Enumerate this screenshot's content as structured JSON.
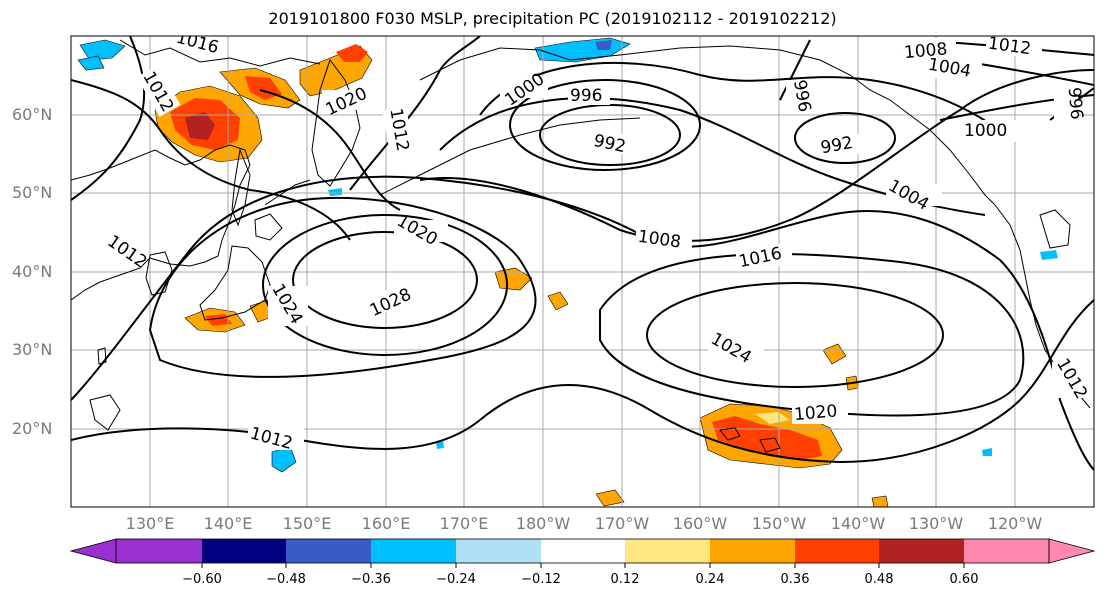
{
  "title": "2019101800 F030 MSLP, precipitation PC (2019102112 - 2019102212)",
  "map": {
    "type": "contour_map",
    "region": "North Pacific",
    "lat_labels": [
      "60°N",
      "50°N",
      "40°N",
      "30°N",
      "20°N"
    ],
    "lon_labels": [
      "130°E",
      "140°E",
      "150°E",
      "160°E",
      "170°E",
      "180°W",
      "170°W",
      "160°W",
      "150°W",
      "140°W",
      "130°W",
      "120°W"
    ],
    "mslp_contour_labels": [
      "1016",
      "1012",
      "1020",
      "1012",
      "1000",
      "996",
      "992",
      "996",
      "992",
      "1008",
      "1004",
      "1012",
      "1000",
      "996",
      "1004",
      "1020",
      "1008",
      "1016",
      "1012",
      "1024",
      "1028",
      "1024",
      "1020",
      "1012",
      "1012"
    ],
    "features": [
      {
        "name": "high-west",
        "label": "1028"
      },
      {
        "name": "high-east",
        "label": "1024"
      },
      {
        "name": "low-aleutian-west",
        "label": "992"
      },
      {
        "name": "low-aleutian-east",
        "label": "992"
      }
    ]
  },
  "colorbar": {
    "colors": [
      "#9b30d0",
      "#000080",
      "#3a5bc7",
      "#00bfff",
      "#b0e0f8",
      "#ffffff",
      "#ffe680",
      "#ffa500",
      "#ff4000",
      "#b22222",
      "#ff88b0"
    ],
    "ticks": [
      "−0.60",
      "−0.48",
      "−0.36",
      "−0.24",
      "−0.12",
      "0.12",
      "0.24",
      "0.36",
      "0.48",
      "0.60"
    ]
  }
}
